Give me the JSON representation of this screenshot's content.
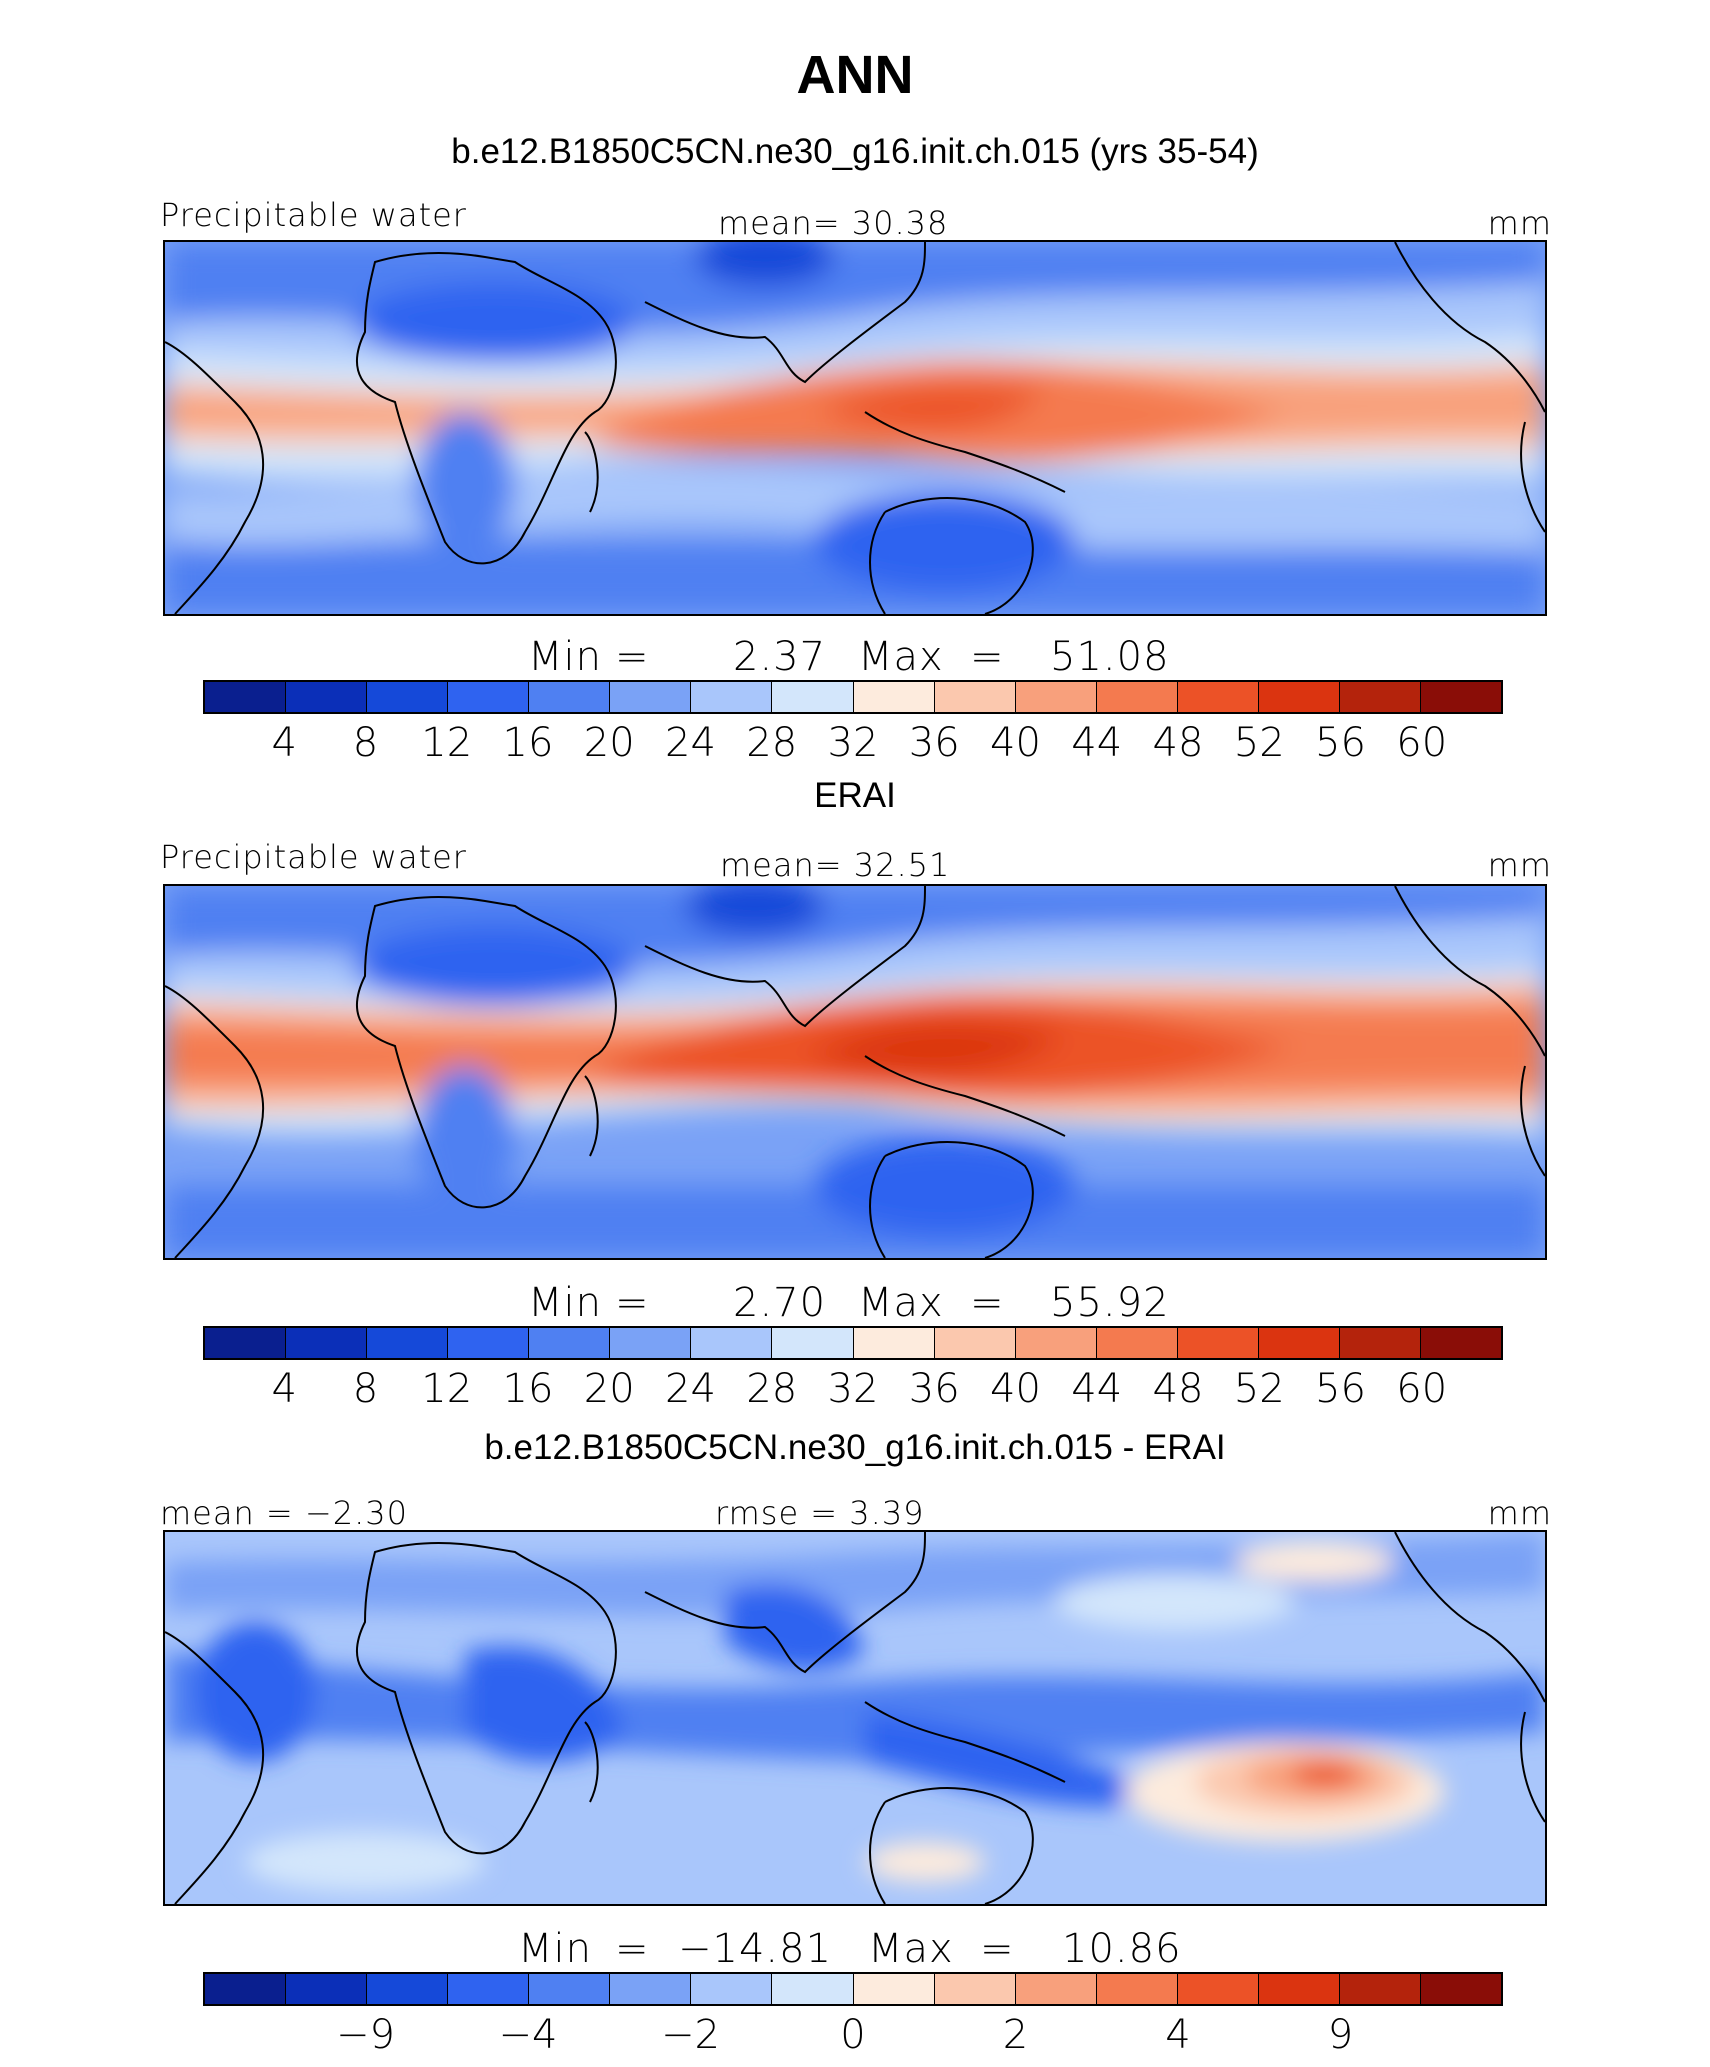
{
  "title": "ANN",
  "colors": {
    "model_palette": [
      "#0a1f8f",
      "#0b2fb8",
      "#1549d9",
      "#2f63f0",
      "#4f80f2",
      "#7aa2f6",
      "#a9c6fb",
      "#d3e6fb",
      "#fdebdd",
      "#fbc8ae",
      "#f8a07c",
      "#f47a4f",
      "#ec5227",
      "#db3410",
      "#b4230c",
      "#8a0d07"
    ],
    "diff_palette": [
      "#0a1f8f",
      "#0b2fb8",
      "#1549d9",
      "#2f63f0",
      "#4f80f2",
      "#7aa2f6",
      "#a9c6fb",
      "#d3e6fb",
      "#fdebdd",
      "#fbc8ae",
      "#f8a07c",
      "#f47a4f",
      "#ec5227",
      "#db3410",
      "#b4230c",
      "#8a0d07"
    ]
  },
  "panels": [
    {
      "title": "b.e12.B1850C5CN.ne30_g16.init.ch.015 (yrs 35-54)",
      "left_label": "Precipitable  water",
      "center_label": "mean=   30.38",
      "units": "mm",
      "min_label": "Min",
      "min_value": "2.37",
      "max_label": "Max",
      "max_value": "51.08",
      "colorbar_ticks": [
        "4",
        "8",
        "12",
        "16",
        "20",
        "24",
        "28",
        "32",
        "36",
        "40",
        "44",
        "48",
        "52",
        "56",
        "60"
      ]
    },
    {
      "title": "ERAI",
      "left_label": "Precipitable  water",
      "center_label": "mean=   32.51",
      "units": "mm",
      "min_label": "Min",
      "min_value": "2.70",
      "max_label": "Max",
      "max_value": "55.92",
      "colorbar_ticks": [
        "4",
        "8",
        "12",
        "16",
        "20",
        "24",
        "28",
        "32",
        "36",
        "40",
        "44",
        "48",
        "52",
        "56",
        "60"
      ]
    },
    {
      "title": "b.e12.B1850C5CN.ne30_g16.init.ch.015 - ERAI",
      "left_label": "mean =   −2.30",
      "center_label": "rmse =     3.39",
      "units": "mm",
      "min_label": "Min",
      "min_value": "−14.81",
      "max_label": "Max",
      "max_value": "10.86",
      "colorbar_ticks": [
        "−9",
        "−4",
        "−2",
        "0",
        "2",
        "4",
        "9"
      ]
    }
  ]
}
